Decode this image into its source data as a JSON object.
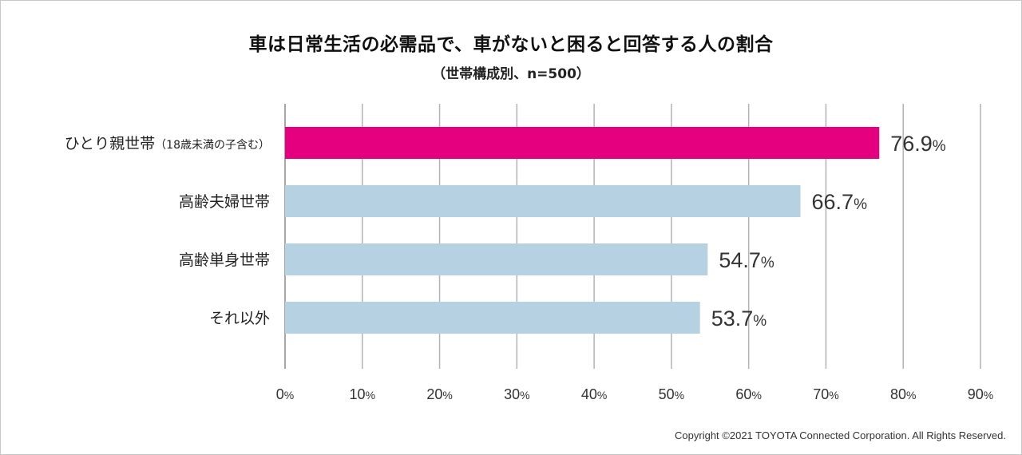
{
  "chart_data": {
    "type": "bar",
    "orientation": "horizontal",
    "title": "車は日常生活の必需品で、車がないと困ると回答する人の割合",
    "subtitle": "（世帯構成別、n=500）",
    "categories": [
      {
        "label": "ひとり親世帯",
        "note": "（18歳未満の子含む）"
      },
      {
        "label": "高齢夫婦世帯",
        "note": ""
      },
      {
        "label": "高齢単身世帯",
        "note": ""
      },
      {
        "label": "それ以外",
        "note": ""
      }
    ],
    "values": [
      76.9,
      66.7,
      54.7,
      53.7
    ],
    "value_unit": "%",
    "bar_colors": [
      "#e4007f",
      "#b6d1e1",
      "#b6d1e1",
      "#b6d1e1"
    ],
    "xlim": [
      0,
      90
    ],
    "xticks": [
      0,
      10,
      20,
      30,
      40,
      50,
      60,
      70,
      80,
      90
    ],
    "tick_unit": "%",
    "grid": true,
    "gridline_color": "#b3b3b3"
  },
  "footer": {
    "copyright": "Copyright ©2021 TOYOTA Connected Corporation. All Rights Reserved."
  }
}
